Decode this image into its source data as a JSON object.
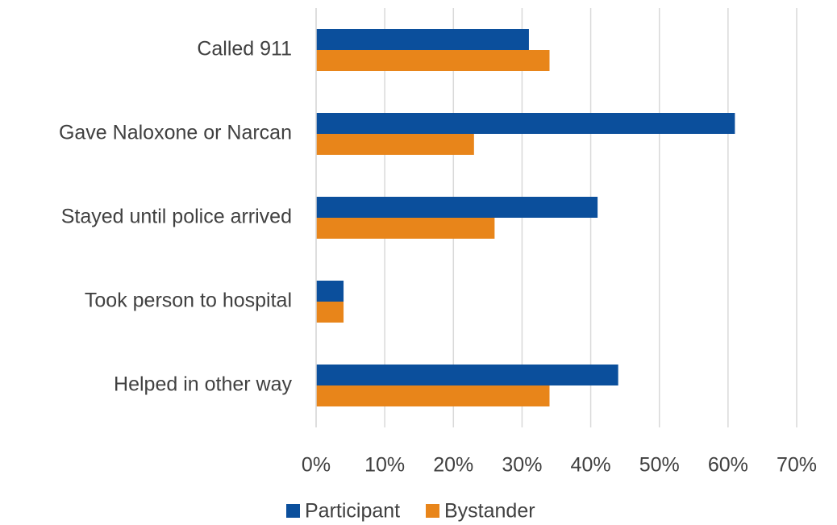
{
  "chart_data": {
    "type": "hbar",
    "categories": [
      "Called 911",
      "Gave Naloxone or Narcan",
      "Stayed until police arrived",
      "Took person to hospital",
      "Helped in other way"
    ],
    "series": [
      {
        "name": "Participant",
        "color": "#0b4f9c",
        "values": [
          31,
          61,
          41,
          4,
          44
        ]
      },
      {
        "name": "Bystander",
        "color": "#e8851a",
        "values": [
          34,
          23,
          26,
          4,
          34
        ]
      }
    ],
    "xlim": [
      0,
      70
    ],
    "xticks": [
      {
        "value": 0,
        "label": "0%"
      },
      {
        "value": 10,
        "label": "10%"
      },
      {
        "value": 20,
        "label": "20%"
      },
      {
        "value": 30,
        "label": "30%"
      },
      {
        "value": 40,
        "label": "40%"
      },
      {
        "value": 50,
        "label": "50%"
      },
      {
        "value": 60,
        "label": "60%"
      },
      {
        "value": 70,
        "label": "70%"
      }
    ],
    "grid": true,
    "legend": "bottom"
  }
}
